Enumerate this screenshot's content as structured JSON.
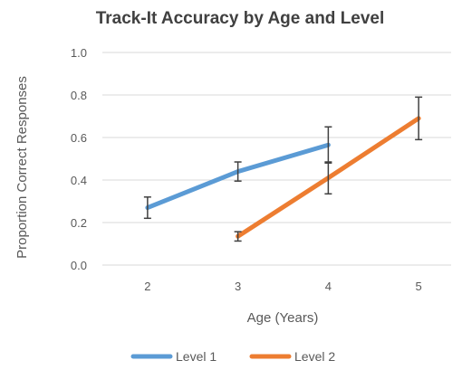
{
  "chart_data": {
    "type": "line",
    "title": "Track-It Accuracy by Age and Level",
    "xlabel": "Age (Years)",
    "ylabel": "Proportion Correct Responses",
    "x": [
      2,
      3,
      4,
      5
    ],
    "x_tick_labels": [
      "2",
      "3",
      "4",
      "5"
    ],
    "ylim": [
      0.0,
      1.0
    ],
    "y_ticks": [
      0.0,
      0.2,
      0.4,
      0.6,
      0.8,
      1.0
    ],
    "y_tick_labels": [
      "0.0",
      "0.2",
      "0.4",
      "0.6",
      "0.8",
      "1.0"
    ],
    "grid": true,
    "legend_position": "bottom",
    "series": [
      {
        "name": "Level 1",
        "color": "#5b9bd5",
        "points": [
          {
            "x": 2,
            "y": 0.27,
            "err": 0.05
          },
          {
            "x": 3,
            "y": 0.44,
            "err": 0.045
          },
          {
            "x": 4,
            "y": 0.565,
            "err": 0.085
          }
        ]
      },
      {
        "name": "Level 2",
        "color": "#ed7d31",
        "points": [
          {
            "x": 3,
            "y": 0.135,
            "err": 0.022
          },
          {
            "x": 4,
            "y": 0.41,
            "err": 0.075
          },
          {
            "x": 5,
            "y": 0.69,
            "err": 0.1
          }
        ]
      }
    ]
  }
}
